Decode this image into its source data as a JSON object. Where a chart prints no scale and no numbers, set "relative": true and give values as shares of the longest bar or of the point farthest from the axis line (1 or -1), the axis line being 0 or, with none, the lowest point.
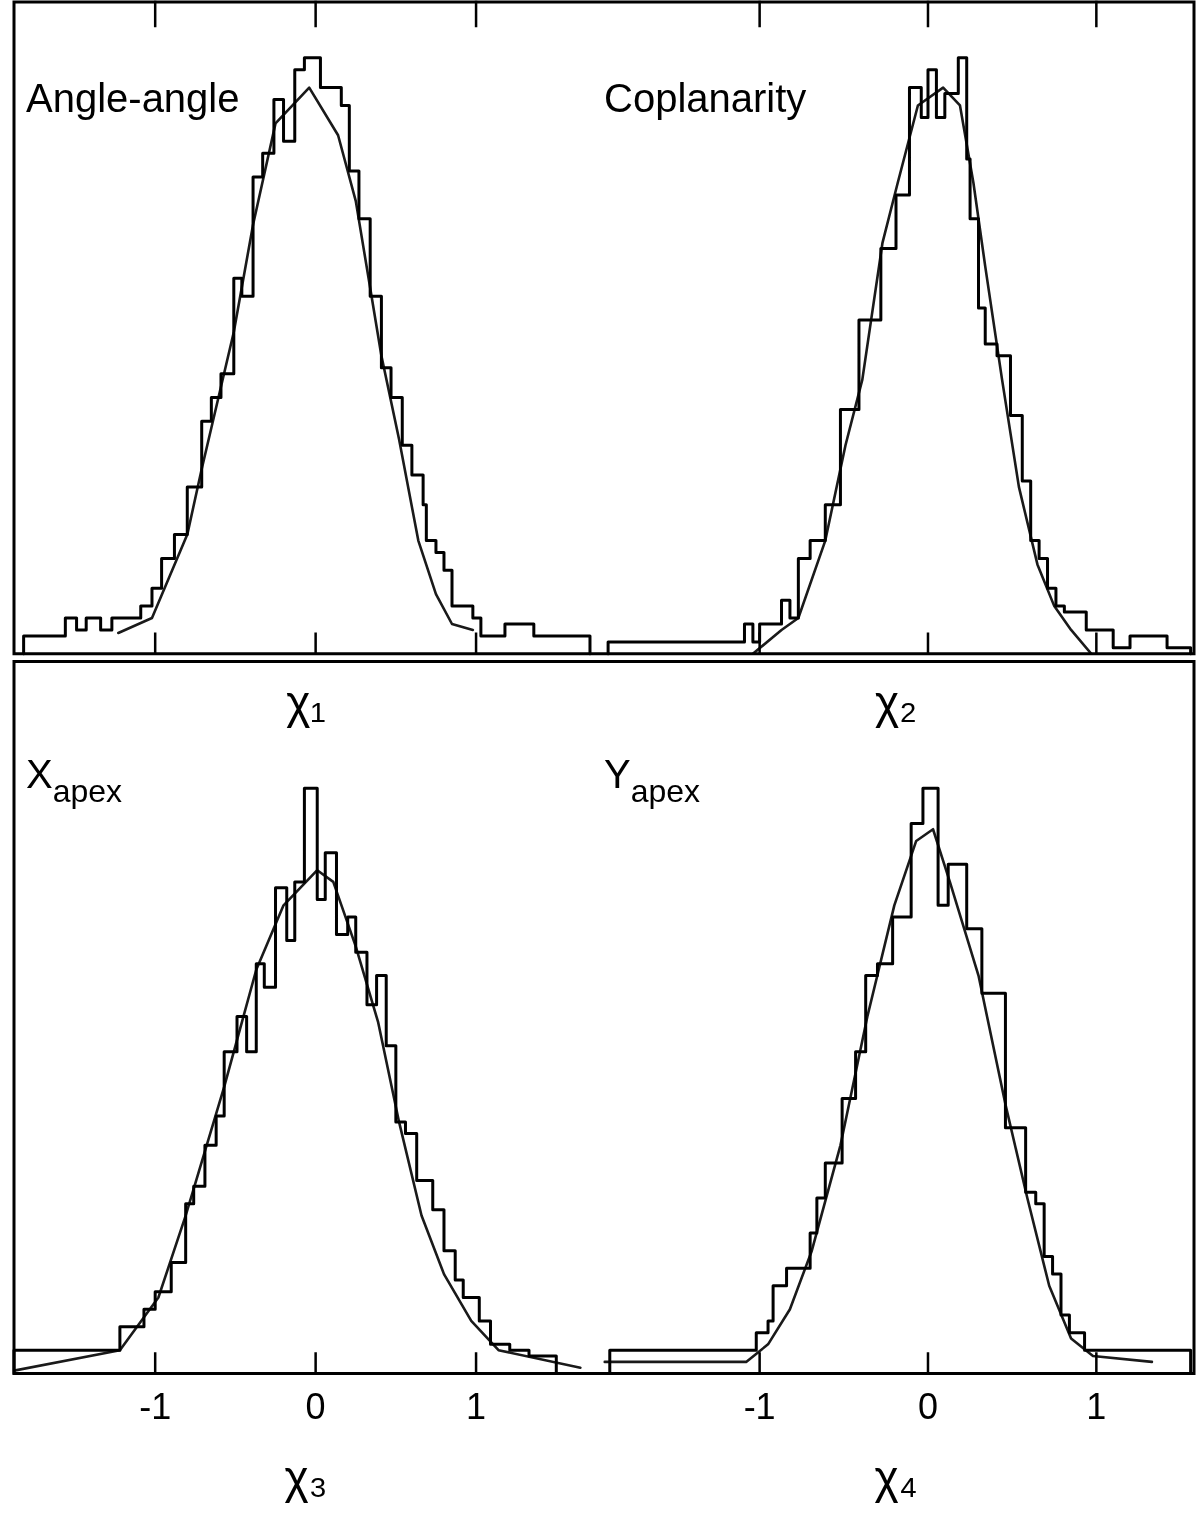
{
  "chart_data": [
    {
      "type": "histogram",
      "relative": true,
      "xlabel": "χ₁",
      "annotations": [
        "Angle-angle"
      ],
      "xlim": [
        -1.88,
        1.76
      ],
      "xticks": [
        -1,
        0,
        1
      ],
      "tick_labels": false,
      "series": [
        {
          "type": "histogram",
          "color": "#000000",
          "bins": [
            -1.82,
            -1.56,
            -1.49,
            -1.43,
            -1.34,
            -1.27,
            -1.09,
            -1.02,
            -0.96,
            -0.88,
            -0.8,
            -0.71,
            -0.65,
            -0.59,
            -0.51,
            -0.46,
            -0.39,
            -0.33,
            -0.26,
            -0.2,
            -0.13,
            -0.07,
            0.03,
            0.16,
            0.21,
            0.27,
            0.34,
            0.41,
            0.47,
            0.54,
            0.6,
            0.67,
            0.69,
            0.75,
            0.8,
            0.85,
            0.98,
            1.03,
            1.18,
            1.36,
            1.71
          ],
          "values": [
            0.03,
            0.06,
            0.04,
            0.06,
            0.04,
            0.06,
            0.08,
            0.11,
            0.16,
            0.2,
            0.28,
            0.39,
            0.43,
            0.47,
            0.63,
            0.6,
            0.8,
            0.84,
            0.93,
            0.86,
            0.98,
            1.0,
            0.95,
            0.92,
            0.81,
            0.73,
            0.6,
            0.48,
            0.43,
            0.35,
            0.3,
            0.25,
            0.19,
            0.17,
            0.14,
            0.08,
            0.06,
            0.03,
            0.05,
            0.03
          ]
        },
        {
          "type": "line",
          "color": "#1a1a1a",
          "marker": "none",
          "x": [
            -1.23,
            -1.02,
            -0.8,
            -0.71,
            -0.51,
            -0.39,
            -0.25,
            -0.04,
            0.14,
            0.25,
            0.33,
            0.41,
            0.52,
            0.64,
            0.75,
            0.85,
            0.98
          ],
          "values": [
            0.035,
            0.06,
            0.2,
            0.31,
            0.54,
            0.72,
            0.89,
            0.95,
            0.87,
            0.76,
            0.63,
            0.5,
            0.36,
            0.19,
            0.1,
            0.05,
            0.04
          ]
        }
      ]
    },
    {
      "type": "histogram",
      "relative": true,
      "xlabel": "χ₂",
      "annotations": [
        "Coplanarity"
      ],
      "xlim": [
        -1.96,
        1.58
      ],
      "xticks": [
        -1,
        0,
        1
      ],
      "tick_labels": false,
      "series": [
        {
          "type": "histogram",
          "color": "#000000",
          "bins": [
            -1.9,
            -1.09,
            -1.04,
            -1.0,
            -0.87,
            -0.82,
            -0.77,
            -0.7,
            -0.61,
            -0.52,
            -0.41,
            -0.28,
            -0.19,
            -0.11,
            -0.04,
            0.0,
            0.05,
            0.1,
            0.18,
            0.23,
            0.25,
            0.3,
            0.34,
            0.41,
            0.49,
            0.56,
            0.61,
            0.66,
            0.71,
            0.76,
            0.81,
            0.94,
            1.1,
            1.2,
            1.42,
            1.56
          ],
          "values": [
            0.02,
            0.05,
            0.02,
            0.05,
            0.09,
            0.06,
            0.16,
            0.19,
            0.25,
            0.41,
            0.56,
            0.68,
            0.77,
            0.95,
            0.9,
            0.98,
            0.9,
            0.94,
            1.0,
            0.83,
            0.73,
            0.58,
            0.52,
            0.5,
            0.4,
            0.29,
            0.19,
            0.16,
            0.11,
            0.08,
            0.07,
            0.04,
            0.01,
            0.03,
            0.01
          ]
        },
        {
          "type": "line",
          "color": "#1a1a1a",
          "marker": "none",
          "x": [
            -1.04,
            -0.87,
            -0.77,
            -0.61,
            -0.49,
            -0.39,
            -0.27,
            -0.18,
            -0.06,
            0.09,
            0.19,
            0.27,
            0.34,
            0.44,
            0.54,
            0.65,
            0.75,
            0.85,
            0.97
          ],
          "values": [
            0.0,
            0.04,
            0.06,
            0.19,
            0.35,
            0.46,
            0.69,
            0.79,
            0.92,
            0.95,
            0.92,
            0.79,
            0.65,
            0.46,
            0.28,
            0.15,
            0.08,
            0.04,
            0.0
          ]
        }
      ]
    },
    {
      "type": "histogram",
      "relative": true,
      "xlabel": "χ₃",
      "annotations": [
        "X$_{apex}$"
      ],
      "xlim": [
        -1.88,
        1.76
      ],
      "xticks": [
        -1,
        0,
        1
      ],
      "series": [
        {
          "type": "histogram",
          "color": "#000000",
          "bins": [
            -1.88,
            -1.22,
            -1.07,
            -1.0,
            -0.9,
            -0.81,
            -0.76,
            -0.69,
            -0.62,
            -0.57,
            -0.49,
            -0.43,
            -0.37,
            -0.32,
            -0.25,
            -0.18,
            -0.13,
            -0.07,
            0.01,
            0.06,
            0.13,
            0.2,
            0.25,
            0.32,
            0.38,
            0.44,
            0.5,
            0.56,
            0.63,
            0.73,
            0.8,
            0.87,
            0.92,
            1.02,
            1.09,
            1.21,
            1.33,
            1.5
          ],
          "values": [
            0.04,
            0.08,
            0.11,
            0.14,
            0.19,
            0.29,
            0.32,
            0.39,
            0.44,
            0.55,
            0.61,
            0.55,
            0.7,
            0.66,
            0.83,
            0.74,
            0.84,
            1.0,
            0.81,
            0.89,
            0.75,
            0.78,
            0.72,
            0.63,
            0.68,
            0.56,
            0.43,
            0.41,
            0.33,
            0.28,
            0.21,
            0.16,
            0.13,
            0.09,
            0.05,
            0.04,
            0.03
          ]
        },
        {
          "type": "line",
          "color": "#1a1a1a",
          "marker": "none",
          "x": [
            -1.88,
            -1.22,
            -0.98,
            -0.81,
            -0.57,
            -0.37,
            -0.2,
            0.01,
            0.11,
            0.25,
            0.39,
            0.52,
            0.66,
            0.8,
            0.97,
            1.14,
            1.65
          ],
          "values": [
            0.005,
            0.04,
            0.13,
            0.27,
            0.49,
            0.69,
            0.8,
            0.86,
            0.84,
            0.73,
            0.6,
            0.43,
            0.27,
            0.17,
            0.09,
            0.04,
            0.01
          ]
        }
      ]
    },
    {
      "type": "histogram",
      "relative": true,
      "xlabel": "χ₄",
      "annotations": [
        "Y$_{apex}$"
      ],
      "xlim": [
        -1.96,
        1.58
      ],
      "xticks": [
        -1,
        0,
        1
      ],
      "series": [
        {
          "type": "histogram",
          "color": "#000000",
          "bins": [
            -1.89,
            -1.02,
            -0.95,
            -0.92,
            -0.84,
            -0.7,
            -0.66,
            -0.61,
            -0.51,
            -0.43,
            -0.37,
            -0.3,
            -0.21,
            -0.1,
            -0.03,
            0.06,
            0.12,
            0.23,
            0.32,
            0.46,
            0.58,
            0.64,
            0.69,
            0.74,
            0.79,
            0.84,
            0.93,
            0.98,
            1.56
          ],
          "values": [
            0.04,
            0.07,
            0.09,
            0.15,
            0.18,
            0.24,
            0.3,
            0.36,
            0.47,
            0.55,
            0.68,
            0.7,
            0.78,
            0.94,
            1.0,
            0.8,
            0.87,
            0.76,
            0.65,
            0.42,
            0.31,
            0.29,
            0.2,
            0.17,
            0.1,
            0.07,
            0.04,
            0.04
          ]
        },
        {
          "type": "line",
          "color": "#1a1a1a",
          "marker": "none",
          "x": [
            -1.92,
            -1.08,
            -0.95,
            -0.82,
            -0.69,
            -0.52,
            -0.36,
            -0.2,
            -0.07,
            0.03,
            0.13,
            0.3,
            0.46,
            0.59,
            0.72,
            0.85,
            0.98,
            1.33
          ],
          "values": [
            0.02,
            0.02,
            0.05,
            0.11,
            0.21,
            0.39,
            0.61,
            0.8,
            0.91,
            0.93,
            0.84,
            0.68,
            0.46,
            0.3,
            0.15,
            0.06,
            0.03,
            0.02
          ]
        }
      ]
    }
  ]
}
